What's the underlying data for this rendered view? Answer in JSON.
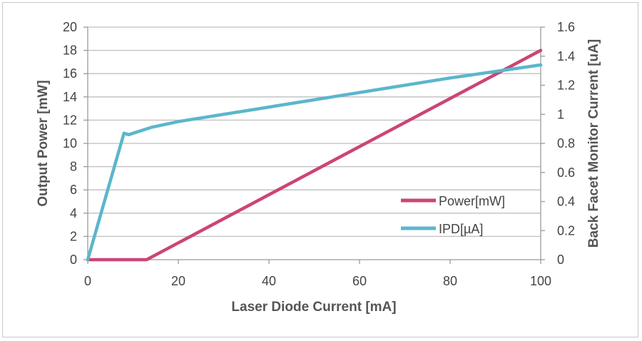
{
  "chart_data": {
    "type": "line",
    "xlabel": "Laser Diode Current [mA]",
    "ylabel": "Output Power [mW]",
    "y2label": "Back Facet Monitor Current [uA]",
    "xlim": [
      0,
      100
    ],
    "ylim": [
      0,
      20
    ],
    "y2lim": [
      0,
      1.6
    ],
    "x_ticks": [
      0,
      20,
      40,
      60,
      80,
      100
    ],
    "y_ticks": [
      0,
      2,
      4,
      6,
      8,
      10,
      12,
      14,
      16,
      18,
      20
    ],
    "y2_ticks": [
      "0",
      "0.2",
      "0.4",
      "0.6",
      "0.8",
      "1",
      "1.2",
      "1.4",
      "1.6"
    ],
    "grid": true,
    "legend_position": "bottom-right",
    "series": [
      {
        "name": "Power[mW]",
        "axis": "left",
        "color": "#cc4477",
        "x": [
          0,
          13,
          100
        ],
        "y": [
          0,
          0,
          18
        ]
      },
      {
        "name": "IPD[µA]",
        "axis": "right",
        "color": "#5bb6cc",
        "x": [
          0,
          8,
          9,
          14,
          20,
          40,
          60,
          80,
          100
        ],
        "y": [
          0,
          0.87,
          0.86,
          0.91,
          0.95,
          1.05,
          1.15,
          1.25,
          1.34
        ]
      }
    ]
  }
}
